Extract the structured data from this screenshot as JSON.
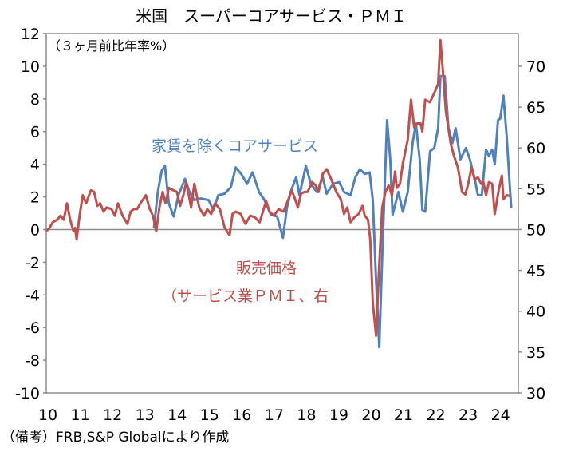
{
  "chart_data": {
    "type": "line",
    "title": "米国　スーパーコアサービス・ＰＭＩ",
    "left_axis_unit": "（３ヶ月前比年率%）",
    "source": "（備考）FRB,S&P Globalにより作成",
    "ylim_left": [
      -10,
      12
    ],
    "yticks_left": [
      "12",
      "10",
      "8",
      "6",
      "4",
      "2",
      "0",
      "-2",
      "-4",
      "-6",
      "-8",
      "-10"
    ],
    "ylim_right": [
      30,
      74
    ],
    "yticks_right": [
      "70",
      "65",
      "60",
      "55",
      "50",
      "45",
      "40",
      "35",
      "30"
    ],
    "xlim": [
      2010,
      2024.6
    ],
    "xticks": [
      "10",
      "11",
      "12",
      "13",
      "14",
      "15",
      "16",
      "17",
      "18",
      "19",
      "20",
      "21",
      "22",
      "23",
      "24"
    ],
    "grid": false,
    "colors": {
      "blue": "#4f81bd",
      "red": "#c0504d"
    },
    "series": [
      {
        "name": "家賃を除くコアサービス",
        "axis": "left",
        "color": "#4f81bd",
        "points": [
          [
            2013.33,
            0.1
          ],
          [
            2013.45,
            2.3
          ],
          [
            2013.57,
            3.6
          ],
          [
            2013.67,
            3.9
          ],
          [
            2013.79,
            1.6
          ],
          [
            2013.94,
            0.8
          ],
          [
            2014.09,
            2.1
          ],
          [
            2014.29,
            3.1
          ],
          [
            2014.43,
            2.3
          ],
          [
            2014.58,
            1.8
          ],
          [
            2014.78,
            1.9
          ],
          [
            2015.02,
            1.8
          ],
          [
            2015.17,
            1.2
          ],
          [
            2015.32,
            2.1
          ],
          [
            2015.52,
            2.2
          ],
          [
            2015.71,
            2.6
          ],
          [
            2015.86,
            3.8
          ],
          [
            2016.03,
            3.4
          ],
          [
            2016.21,
            2.8
          ],
          [
            2016.38,
            3.5
          ],
          [
            2016.58,
            2.3
          ],
          [
            2016.75,
            1.8
          ],
          [
            2016.95,
            0.9
          ],
          [
            2017.14,
            0.8
          ],
          [
            2017.32,
            -0.5
          ],
          [
            2017.44,
            1.3
          ],
          [
            2017.56,
            2.3
          ],
          [
            2017.73,
            3.2
          ],
          [
            2017.83,
            2.1
          ],
          [
            2018.03,
            3.9
          ],
          [
            2018.18,
            2.8
          ],
          [
            2018.37,
            2.3
          ],
          [
            2018.55,
            3.2
          ],
          [
            2018.67,
            2.2
          ],
          [
            2018.87,
            2.8
          ],
          [
            2019.06,
            2.9
          ],
          [
            2019.21,
            2.3
          ],
          [
            2019.41,
            2.1
          ],
          [
            2019.56,
            3.2
          ],
          [
            2019.7,
            3.7
          ],
          [
            2019.85,
            3.4
          ],
          [
            2020.0,
            3.5
          ],
          [
            2020.1,
            1.8
          ],
          [
            2020.2,
            -3.1
          ],
          [
            2020.3,
            -7.2
          ],
          [
            2020.39,
            -1.6
          ],
          [
            2020.54,
            6.7
          ],
          [
            2020.64,
            4.3
          ],
          [
            2020.71,
            0.9
          ],
          [
            2020.89,
            2.3
          ],
          [
            2021.03,
            1.1
          ],
          [
            2021.18,
            2.3
          ],
          [
            2021.33,
            5.3
          ],
          [
            2021.43,
            6.5
          ],
          [
            2021.55,
            4.3
          ],
          [
            2021.63,
            1.2
          ],
          [
            2021.72,
            1.1
          ],
          [
            2021.87,
            4.8
          ],
          [
            2022.0,
            5.0
          ],
          [
            2022.12,
            6.2
          ],
          [
            2022.19,
            9.4
          ],
          [
            2022.32,
            9.4
          ],
          [
            2022.44,
            6.2
          ],
          [
            2022.56,
            5.3
          ],
          [
            2022.66,
            6.2
          ],
          [
            2022.81,
            4.3
          ],
          [
            2022.98,
            5.0
          ],
          [
            2023.1,
            4.3
          ],
          [
            2023.25,
            3.1
          ],
          [
            2023.35,
            2.1
          ],
          [
            2023.47,
            2.1
          ],
          [
            2023.6,
            4.9
          ],
          [
            2023.69,
            4.5
          ],
          [
            2023.79,
            4.9
          ],
          [
            2023.87,
            4.0
          ],
          [
            2023.97,
            6.7
          ],
          [
            2024.04,
            6.8
          ],
          [
            2024.14,
            8.2
          ],
          [
            2024.24,
            5.7
          ],
          [
            2024.33,
            2.8
          ],
          [
            2024.38,
            1.3
          ]
        ]
      },
      {
        "name": "販売価格（サービス業ＰＭＩ、右",
        "axis": "right",
        "color": "#c0504d",
        "points": [
          [
            2010.0,
            49.8
          ],
          [
            2010.1,
            50.2
          ],
          [
            2010.2,
            50.9
          ],
          [
            2010.34,
            51.2
          ],
          [
            2010.44,
            51.7
          ],
          [
            2010.54,
            51.2
          ],
          [
            2010.64,
            53.2
          ],
          [
            2010.74,
            51.2
          ],
          [
            2010.84,
            49.8
          ],
          [
            2010.89,
            50.2
          ],
          [
            2010.94,
            48.8
          ],
          [
            2011.03,
            51.7
          ],
          [
            2011.13,
            54.2
          ],
          [
            2011.23,
            53.2
          ],
          [
            2011.38,
            54.8
          ],
          [
            2011.48,
            54.6
          ],
          [
            2011.58,
            52.9
          ],
          [
            2011.67,
            53.2
          ],
          [
            2011.77,
            52.2
          ],
          [
            2011.87,
            52.7
          ],
          [
            2012.02,
            52.5
          ],
          [
            2012.12,
            51.7
          ],
          [
            2012.22,
            53.2
          ],
          [
            2012.36,
            51.7
          ],
          [
            2012.51,
            50.7
          ],
          [
            2012.61,
            52.2
          ],
          [
            2012.71,
            52.5
          ],
          [
            2012.81,
            52.5
          ],
          [
            2012.91,
            53.2
          ],
          [
            2013.08,
            54.2
          ],
          [
            2013.2,
            52.5
          ],
          [
            2013.3,
            51.7
          ],
          [
            2013.4,
            49.8
          ],
          [
            2013.5,
            52.7
          ],
          [
            2013.6,
            54.6
          ],
          [
            2013.69,
            53.2
          ],
          [
            2013.79,
            55.1
          ],
          [
            2013.94,
            54.8
          ],
          [
            2014.04,
            54.6
          ],
          [
            2014.14,
            52.9
          ],
          [
            2014.24,
            54.2
          ],
          [
            2014.33,
            55.8
          ],
          [
            2014.48,
            52.7
          ],
          [
            2014.58,
            55.6
          ],
          [
            2014.73,
            52.7
          ],
          [
            2014.88,
            51.7
          ],
          [
            2014.98,
            52.5
          ],
          [
            2015.1,
            51.9
          ],
          [
            2015.22,
            53.2
          ],
          [
            2015.37,
            52.5
          ],
          [
            2015.52,
            50.2
          ],
          [
            2015.67,
            49.3
          ],
          [
            2015.76,
            51.9
          ],
          [
            2015.86,
            52.2
          ],
          [
            2016.01,
            51.9
          ],
          [
            2016.16,
            50.7
          ],
          [
            2016.31,
            51.7
          ],
          [
            2016.45,
            51.5
          ],
          [
            2016.6,
            50.9
          ],
          [
            2016.8,
            53.5
          ],
          [
            2016.9,
            52.2
          ],
          [
            2017.04,
            51.7
          ],
          [
            2017.19,
            52.5
          ],
          [
            2017.34,
            52.2
          ],
          [
            2017.49,
            53.7
          ],
          [
            2017.59,
            54.8
          ],
          [
            2017.68,
            53.9
          ],
          [
            2017.78,
            52.7
          ],
          [
            2017.88,
            54.4
          ],
          [
            2017.98,
            54.6
          ],
          [
            2018.08,
            54.6
          ],
          [
            2018.23,
            55.8
          ],
          [
            2018.33,
            55.4
          ],
          [
            2018.42,
            54.6
          ],
          [
            2018.55,
            56.8
          ],
          [
            2018.67,
            57.4
          ],
          [
            2018.82,
            56.1
          ],
          [
            2018.97,
            54.6
          ],
          [
            2019.11,
            53.7
          ],
          [
            2019.21,
            51.9
          ],
          [
            2019.31,
            52.7
          ],
          [
            2019.41,
            50.9
          ],
          [
            2019.53,
            51.5
          ],
          [
            2019.66,
            51.9
          ],
          [
            2019.78,
            52.9
          ],
          [
            2019.85,
            51.7
          ],
          [
            2019.95,
            51.2
          ],
          [
            2020.02,
            48.8
          ],
          [
            2020.1,
            41.0
          ],
          [
            2020.2,
            37.0
          ],
          [
            2020.3,
            45.8
          ],
          [
            2020.39,
            52.7
          ],
          [
            2020.49,
            54.6
          ],
          [
            2020.59,
            55.4
          ],
          [
            2020.69,
            54.2
          ],
          [
            2020.79,
            57.1
          ],
          [
            2020.84,
            55.1
          ],
          [
            2020.94,
            55.6
          ],
          [
            2021.03,
            58.1
          ],
          [
            2021.18,
            61.0
          ],
          [
            2021.28,
            65.9
          ],
          [
            2021.38,
            62.5
          ],
          [
            2021.48,
            63.0
          ],
          [
            2021.58,
            63.0
          ],
          [
            2021.63,
            62.0
          ],
          [
            2021.72,
            65.9
          ],
          [
            2021.87,
            65.6
          ],
          [
            2022.02,
            66.9
          ],
          [
            2022.12,
            67.8
          ],
          [
            2022.19,
            73.2
          ],
          [
            2022.27,
            69.3
          ],
          [
            2022.36,
            64.4
          ],
          [
            2022.51,
            60.5
          ],
          [
            2022.61,
            59.0
          ],
          [
            2022.73,
            57.6
          ],
          [
            2022.86,
            54.6
          ],
          [
            2022.96,
            54.3
          ],
          [
            2023.05,
            55.6
          ],
          [
            2023.15,
            57.6
          ],
          [
            2023.25,
            56.1
          ],
          [
            2023.35,
            56.4
          ],
          [
            2023.45,
            55.6
          ],
          [
            2023.52,
            55.8
          ],
          [
            2023.6,
            54.2
          ],
          [
            2023.69,
            55.8
          ],
          [
            2023.79,
            55.6
          ],
          [
            2023.87,
            51.9
          ],
          [
            2023.99,
            54.8
          ],
          [
            2024.09,
            56.6
          ],
          [
            2024.14,
            53.7
          ],
          [
            2024.24,
            54.2
          ],
          [
            2024.33,
            54.1
          ]
        ]
      }
    ],
    "annotations": {
      "blue_label": "家賃を除くコアサービス",
      "red_label_1": "販売価格",
      "red_label_2": "（サービス業ＰＭＩ、右"
    }
  }
}
